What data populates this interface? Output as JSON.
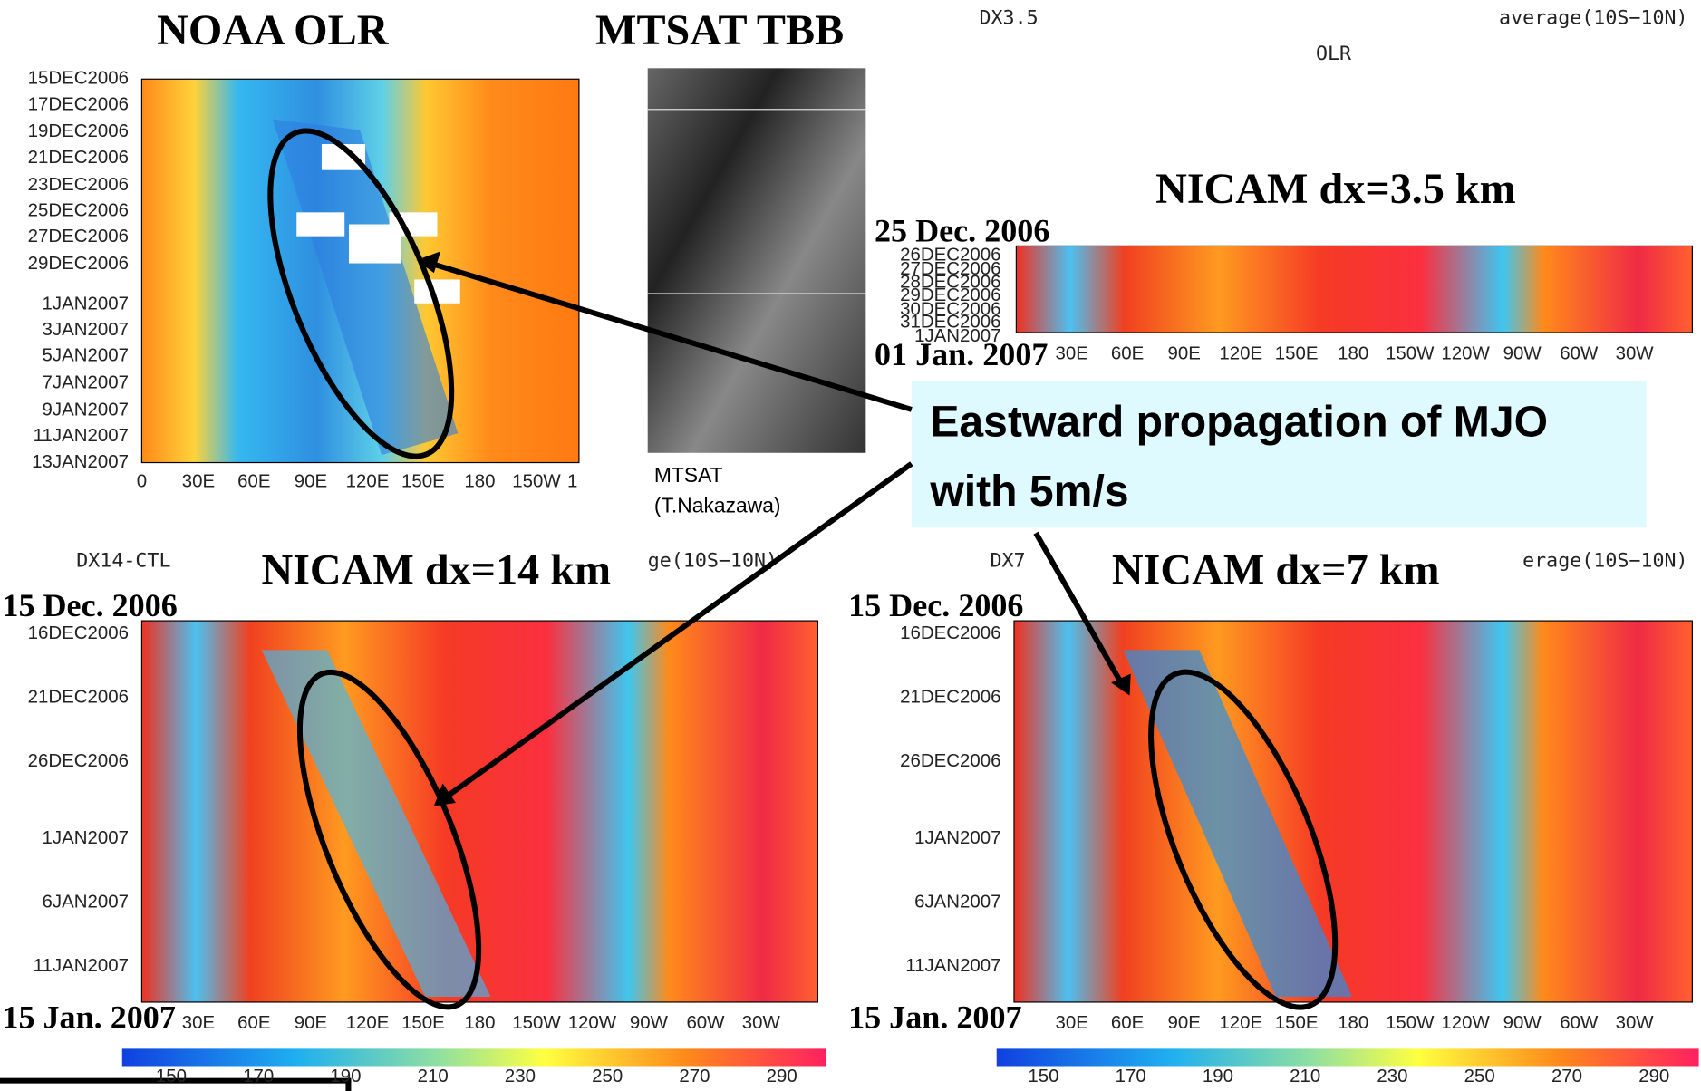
{
  "panels": {
    "noaa": {
      "title": "NOAA OLR",
      "y_labels": [
        "15DEC2006",
        "17DEC2006",
        "19DEC2006",
        "21DEC2006",
        "23DEC2006",
        "25DEC2006",
        "27DEC2006",
        "29DEC2006",
        "1JAN2007",
        "3JAN2007",
        "5JAN2007",
        "7JAN2007",
        "9JAN2007",
        "11JAN2007",
        "13JAN2007"
      ],
      "x_labels": [
        "0",
        "30E",
        "60E",
        "90E",
        "120E",
        "150E",
        "180",
        "150W",
        "1"
      ]
    },
    "mtsat": {
      "title": "MTSAT TBB",
      "caption": "MTSAT",
      "credit": "(T.Nakazawa)"
    },
    "dx3_5": {
      "header_left": "DX3.5",
      "header_right": "average(10S−10N)",
      "variable": "OLR",
      "title": "NICAM dx=3.5 km",
      "start": "25 Dec. 2006",
      "end": "01 Jan. 2007",
      "y_labels": [
        "26DEC2006",
        "27DEC2006",
        "28DEC2006",
        "29DEC2006",
        "30DEC2006",
        "31DEC2006",
        "1JAN2007"
      ],
      "x_labels": [
        "30E",
        "60E",
        "90E",
        "120E",
        "150E",
        "180",
        "150W",
        "120W",
        "90W",
        "60W",
        "30W"
      ]
    },
    "dx14": {
      "header_left": "DX14-CTL",
      "header_right": "ge(10S−10N)",
      "title": "NICAM dx=14 km",
      "start": "15 Dec. 2006",
      "end": "15 Jan. 2007",
      "y_labels": [
        "16DEC2006",
        "21DEC2006",
        "26DEC2006",
        "1JAN2007",
        "6JAN2007",
        "11JAN2007"
      ],
      "x_labels": [
        "30E",
        "60E",
        "90E",
        "120E",
        "150E",
        "180",
        "150W",
        "120W",
        "90W",
        "60W",
        "30W"
      ],
      "colorbar": [
        "150",
        "170",
        "190",
        "210",
        "230",
        "250",
        "270",
        "290"
      ]
    },
    "dx7": {
      "header_left": "DX7",
      "header_right": "erage(10S−10N)",
      "title": "NICAM dx=7 km",
      "start": "15 Dec. 2006",
      "end": "15 Jan. 2007",
      "y_labels": [
        "16DEC2006",
        "21DEC2006",
        "26DEC2006",
        "1JAN2007",
        "6JAN2007",
        "11JAN2007"
      ],
      "x_labels": [
        "30E",
        "60E",
        "90E",
        "120E",
        "150E",
        "180",
        "150W",
        "120W",
        "90W",
        "60W",
        "30W"
      ],
      "colorbar": [
        "150",
        "170",
        "190",
        "210",
        "230",
        "250",
        "270",
        "290"
      ]
    }
  },
  "callout": {
    "lines": [
      "Eastward propagation of MJO",
      "with 5m/s"
    ]
  }
}
